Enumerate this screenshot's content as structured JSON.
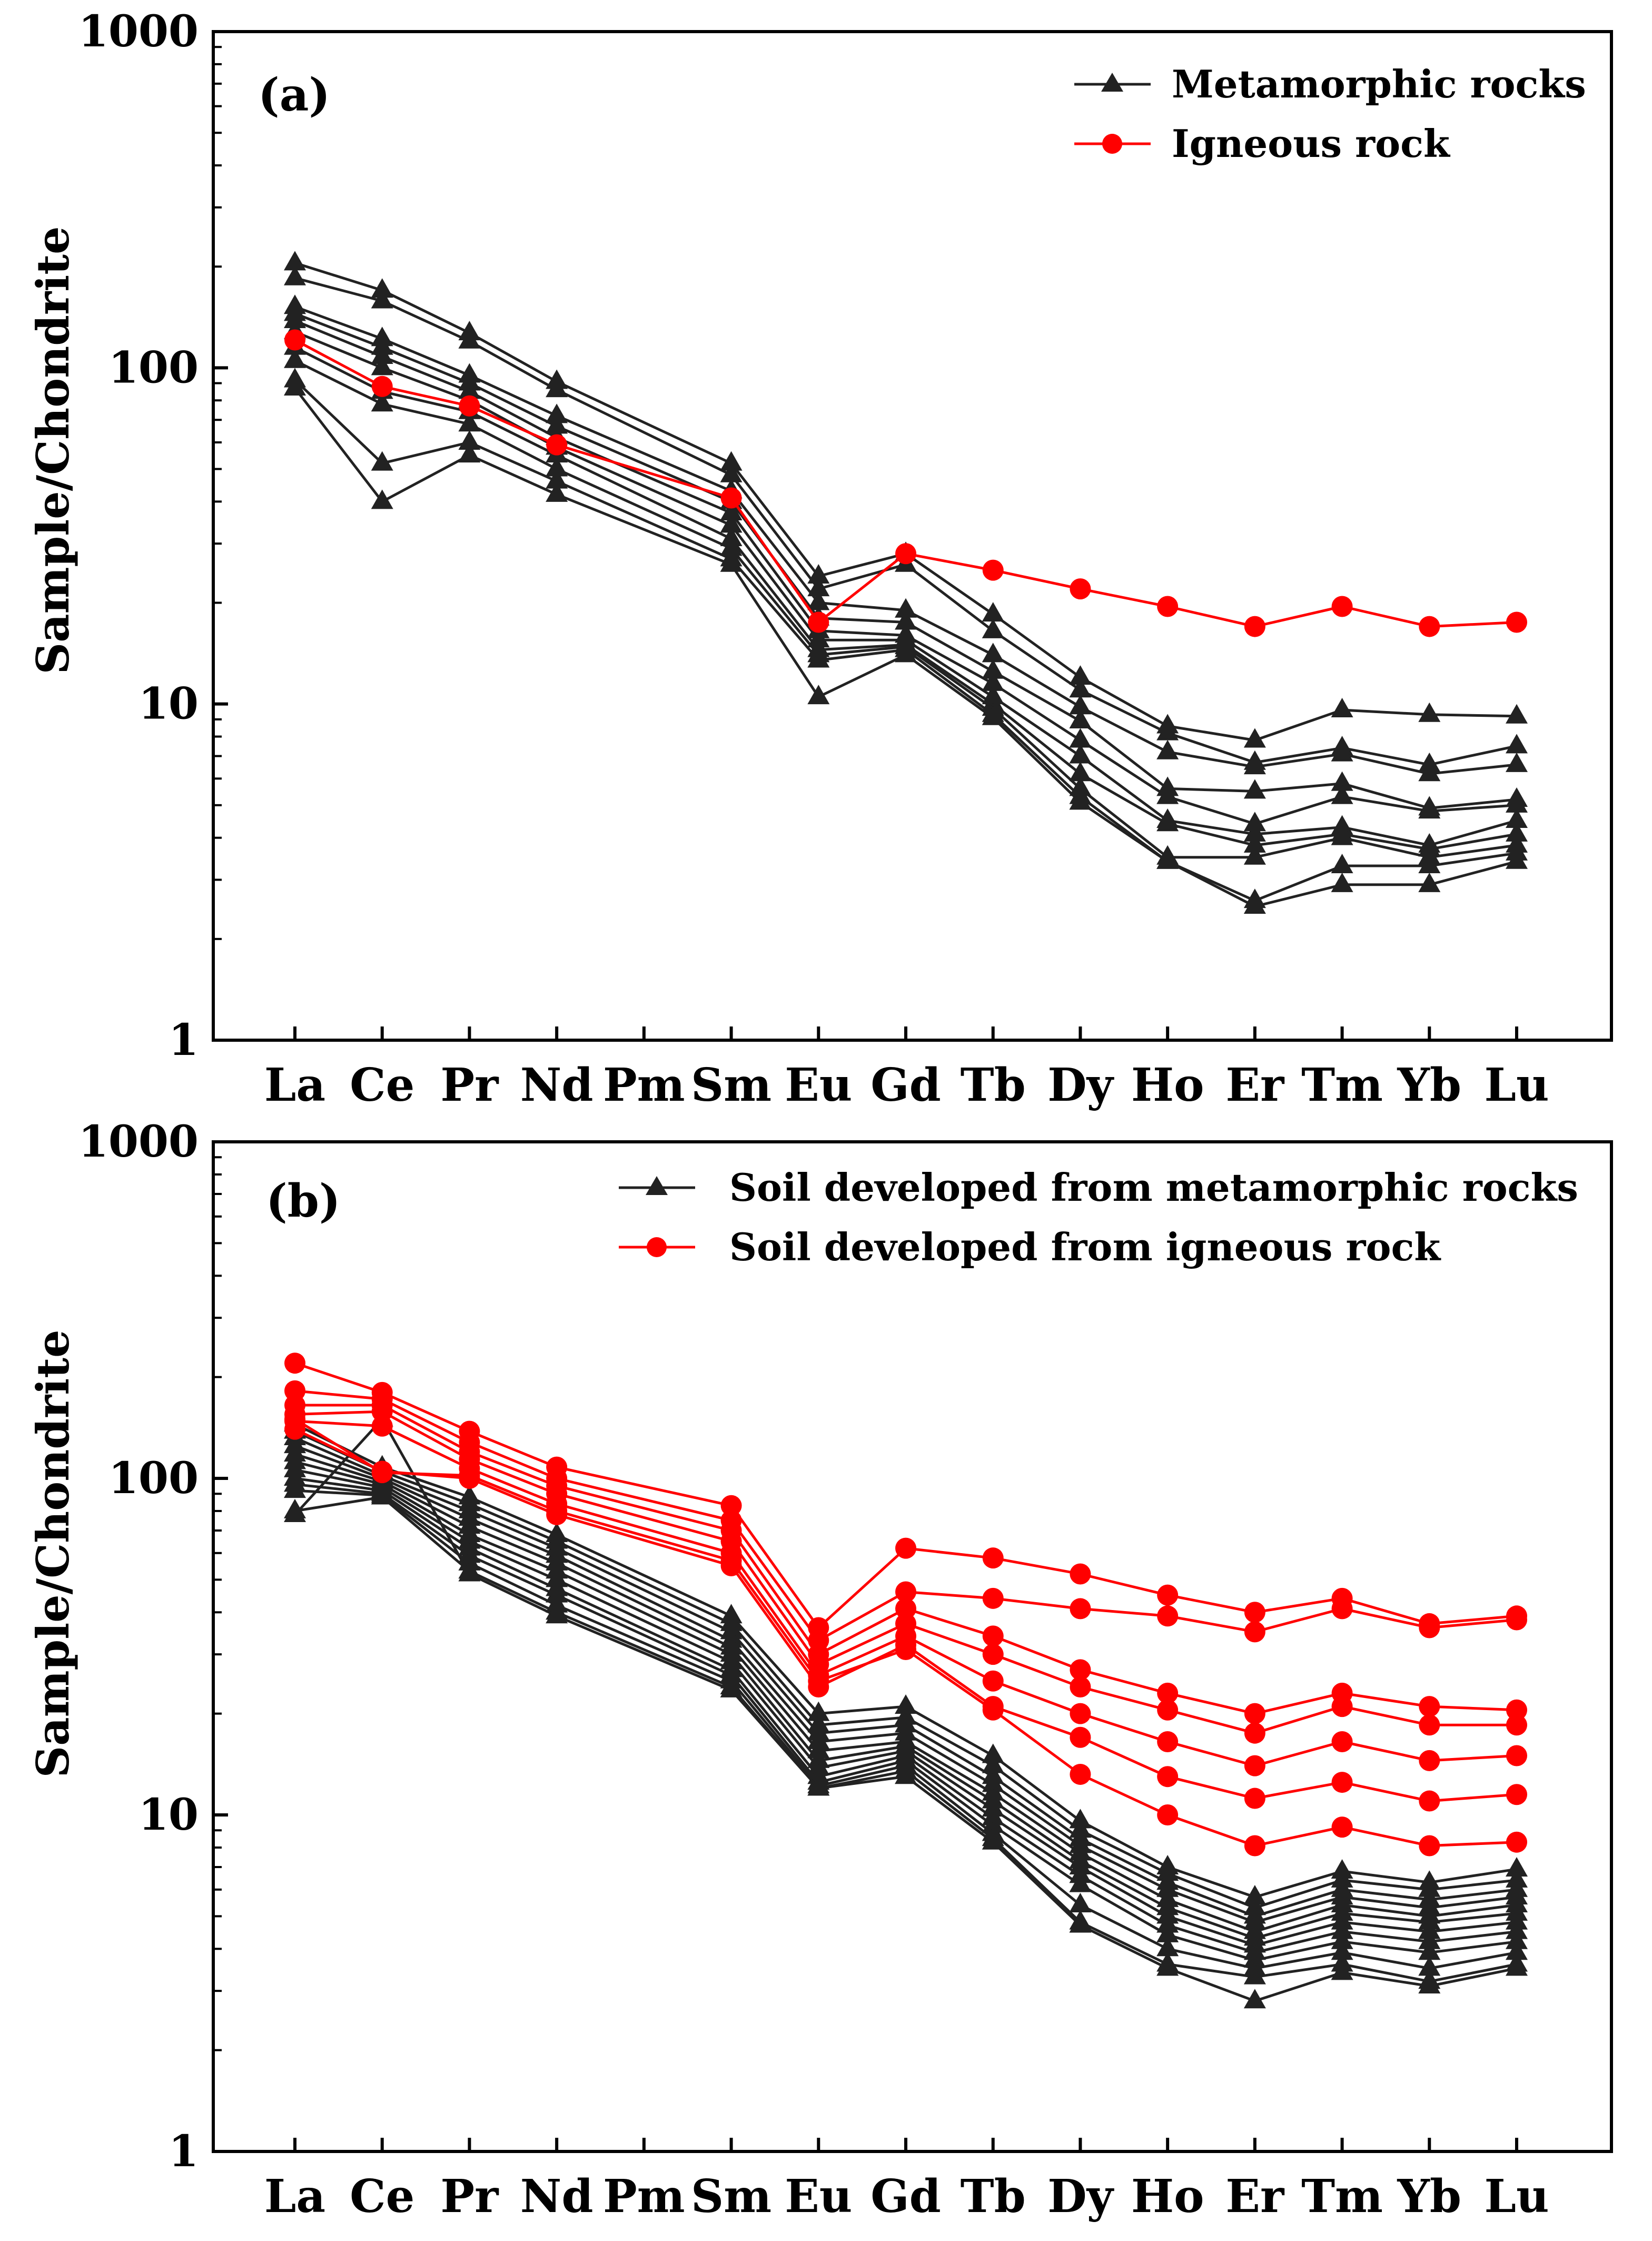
{
  "colors": {
    "metamorphic": "#222222",
    "igneous": "#ff0000",
    "axis": "#000000"
  },
  "chart_data": [
    {
      "type": "line",
      "panel_label": "(a)",
      "ylabel": "Sample/Chondrite",
      "yscale": "log",
      "ylim": [
        1,
        1000
      ],
      "ytick_labels": [
        "1",
        "10",
        "100",
        "1000"
      ],
      "categories": [
        "La",
        "Ce",
        "Pr",
        "Nd",
        "Pm",
        "Sm",
        "Eu",
        "Gd",
        "Tb",
        "Dy",
        "Ho",
        "Er",
        "Tm",
        "Yb",
        "Lu"
      ],
      "legend": [
        {
          "label": "Metamorphic rocks",
          "color": "#222222",
          "marker": "triangle"
        },
        {
          "label": "Igneous rock",
          "color": "#ff0000",
          "marker": "circle"
        }
      ],
      "series": [
        {
          "name": "Metamorphic rocks",
          "group": "metamorphic",
          "values": [
            205,
            170,
            127,
            91,
            null,
            52,
            24,
            28,
            18.5,
            12,
            8.6,
            7.8,
            9.6,
            9.3,
            9.2
          ]
        },
        {
          "name": "Metamorphic rocks",
          "group": "metamorphic",
          "values": [
            185,
            158,
            120,
            86,
            null,
            48,
            22,
            26,
            16.5,
            11,
            8.2,
            6.7,
            7.4,
            6.6,
            7.5
          ]
        },
        {
          "name": "Metamorphic rocks",
          "group": "metamorphic",
          "values": [
            152,
            122,
            95,
            72,
            null,
            43,
            20,
            19,
            14,
            9.8,
            7.2,
            6.5,
            7.1,
            6.2,
            6.6
          ]
        },
        {
          "name": "Metamorphic rocks",
          "group": "metamorphic",
          "values": [
            145,
            115,
            90,
            67,
            null,
            40,
            18,
            17.5,
            12.5,
            8.9,
            5.6,
            5.5,
            5.8,
            4.9,
            5.2
          ]
        },
        {
          "name": "Metamorphic rocks",
          "group": "metamorphic",
          "values": [
            138,
            108,
            85,
            62,
            null,
            37,
            16.5,
            16,
            11.5,
            7.8,
            5.3,
            4.4,
            5.3,
            4.8,
            5.0
          ]
        },
        {
          "name": "Metamorphic rocks",
          "group": "metamorphic",
          "values": [
            128,
            100,
            80,
            58,
            null,
            34,
            15.5,
            15.5,
            10.5,
            7.0,
            4.5,
            4.1,
            4.3,
            3.8,
            4.5
          ]
        },
        {
          "name": "Metamorphic rocks",
          "group": "metamorphic",
          "values": [
            115,
            85,
            74,
            55,
            null,
            31,
            14.5,
            15,
            10,
            6.2,
            4.4,
            3.8,
            4.1,
            3.7,
            4.1
          ]
        },
        {
          "name": "Metamorphic rocks",
          "group": "metamorphic",
          "values": [
            105,
            78,
            68,
            50,
            null,
            29,
            14,
            14.8,
            9.7,
            5.6,
            3.5,
            3.5,
            4.0,
            3.5,
            3.8
          ]
        },
        {
          "name": "Metamorphic rocks",
          "group": "metamorphic",
          "values": [
            92,
            52,
            60,
            46,
            null,
            27,
            13.5,
            14.5,
            9.3,
            5.3,
            3.4,
            2.6,
            3.3,
            3.3,
            3.6
          ]
        },
        {
          "name": "Metamorphic rocks",
          "group": "metamorphic",
          "values": [
            87,
            40,
            55,
            42,
            null,
            26,
            10.5,
            14,
            9.1,
            5.1,
            3.4,
            2.5,
            2.9,
            2.9,
            3.4
          ]
        },
        {
          "name": "Igneous rock",
          "group": "igneous",
          "values": [
            121,
            88,
            77,
            59,
            null,
            41,
            17.5,
            28,
            25,
            22,
            19.5,
            17,
            19.5,
            17,
            17.5
          ]
        }
      ]
    },
    {
      "type": "line",
      "panel_label": "(b)",
      "ylabel": "Sample/Chondrite",
      "yscale": "log",
      "ylim": [
        1,
        1000
      ],
      "ytick_labels": [
        "1",
        "10",
        "100",
        "1000"
      ],
      "categories": [
        "La",
        "Ce",
        "Pr",
        "Nd",
        "Pm",
        "Sm",
        "Eu",
        "Gd",
        "Tb",
        "Dy",
        "Ho",
        "Er",
        "Tm",
        "Yb",
        "Lu"
      ],
      "legend": [
        {
          "label": "Soil developed from metamorphic rocks",
          "color": "#222222",
          "marker": "triangle"
        },
        {
          "label": "Soil developed from igneous rock",
          "color": "#ff0000",
          "marker": "circle"
        }
      ],
      "series": [
        {
          "name": "Soil developed from metamorphic rocks",
          "group": "metamorphic",
          "values": [
            145,
            108,
            88,
            68,
            null,
            39,
            20,
            21,
            15,
            9.6,
            7.0,
            5.7,
            6.8,
            6.3,
            6.9
          ]
        },
        {
          "name": "Soil developed from metamorphic rocks",
          "group": "metamorphic",
          "values": [
            138,
            105,
            84,
            65,
            null,
            37,
            18.5,
            19.5,
            14,
            9.0,
            6.7,
            5.3,
            6.4,
            6.0,
            6.4
          ]
        },
        {
          "name": "Soil developed from metamorphic rocks",
          "group": "metamorphic",
          "values": [
            132,
            102,
            80,
            62,
            null,
            35,
            17.5,
            18.5,
            13,
            8.5,
            6.3,
            5.0,
            6.0,
            5.6,
            6.0
          ]
        },
        {
          "name": "Soil developed from metamorphic rocks",
          "group": "metamorphic",
          "values": [
            125,
            100,
            76,
            59,
            null,
            33,
            16.5,
            17.5,
            12.3,
            8.1,
            6.0,
            4.8,
            5.7,
            5.3,
            5.7
          ]
        },
        {
          "name": "Soil developed from metamorphic rocks",
          "group": "metamorphic",
          "values": [
            118,
            98,
            72,
            56,
            null,
            31.5,
            15.5,
            16.5,
            11.6,
            7.7,
            5.6,
            4.5,
            5.4,
            5.0,
            5.4
          ]
        },
        {
          "name": "Soil developed from metamorphic rocks",
          "group": "metamorphic",
          "values": [
            112,
            96,
            68,
            53,
            null,
            30,
            14.5,
            16,
            11,
            7.3,
            5.3,
            4.3,
            5.1,
            4.8,
            5.1
          ]
        },
        {
          "name": "Soil developed from metamorphic rocks",
          "group": "metamorphic",
          "values": [
            106,
            94,
            65,
            50,
            null,
            28.5,
            13.8,
            15.5,
            10.4,
            7.0,
            5.0,
            4.1,
            4.8,
            4.5,
            4.8
          ]
        },
        {
          "name": "Soil developed from metamorphic rocks",
          "group": "metamorphic",
          "values": [
            100,
            92,
            62,
            47,
            null,
            27,
            13,
            15,
            9.8,
            6.6,
            4.7,
            3.9,
            4.5,
            4.2,
            4.5
          ]
        },
        {
          "name": "Soil developed from metamorphic rocks",
          "group": "metamorphic",
          "values": [
            96,
            90,
            59,
            45,
            null,
            26,
            12.5,
            14.5,
            9.3,
            6.2,
            4.4,
            3.7,
            4.2,
            3.9,
            4.2
          ]
        },
        {
          "name": "Soil developed from metamorphic rocks",
          "group": "metamorphic",
          "values": [
            92,
            89,
            56,
            42,
            null,
            25,
            12.2,
            14,
            8.8,
            5.4,
            4.0,
            3.5,
            3.9,
            3.5,
            3.9
          ]
        },
        {
          "name": "Soil developed from metamorphic rocks",
          "group": "metamorphic",
          "values": [
            80,
            88,
            53,
            40,
            null,
            24,
            12,
            13.5,
            8.5,
            4.8,
            3.6,
            3.3,
            3.6,
            3.2,
            3.6
          ]
        },
        {
          "name": "Soil developed from metamorphic rocks",
          "group": "metamorphic",
          "values": [
            78,
            150,
            52,
            39,
            null,
            23.5,
            12,
            13,
            8.3,
            4.7,
            3.5,
            2.8,
            3.4,
            3.1,
            3.5
          ]
        },
        {
          "name": "Soil developed from igneous rock",
          "group": "igneous",
          "values": [
            220,
            180,
            138,
            108,
            null,
            83,
            36,
            62,
            58,
            52,
            45,
            40,
            44,
            37,
            39
          ]
        },
        {
          "name": "Soil developed from igneous rock",
          "group": "igneous",
          "values": [
            182,
            172,
            128,
            100,
            null,
            75,
            33,
            46,
            44,
            41,
            39,
            35,
            41,
            36,
            38
          ]
        },
        {
          "name": "Soil developed from igneous rock",
          "group": "igneous",
          "values": [
            165,
            165,
            120,
            95,
            null,
            70,
            30,
            41,
            34,
            27,
            23,
            20,
            23,
            21,
            20.5
          ]
        },
        {
          "name": "Soil developed from igneous rock",
          "group": "igneous",
          "values": [
            155,
            158,
            114,
            90,
            null,
            65,
            28,
            37,
            30,
            24,
            20.5,
            17.5,
            21,
            18.5,
            18.5
          ]
        },
        {
          "name": "Soil developed from igneous rock",
          "group": "igneous",
          "values": [
            148,
            143,
            107,
            84,
            null,
            60,
            26,
            34,
            25,
            20,
            16.5,
            14,
            16.5,
            14.5,
            15
          ]
        },
        {
          "name": "Soil developed from igneous rock",
          "group": "igneous",
          "values": [
            140,
            105,
            100,
            78,
            null,
            55,
            24,
            32,
            21,
            17,
            13,
            11.2,
            12.5,
            11,
            11.5
          ]
        },
        {
          "name": "Soil developed from igneous rock",
          "group": "igneous",
          "values": [
            150,
            104,
            102,
            80,
            null,
            57,
            25,
            31,
            20.5,
            13.2,
            10,
            8.1,
            9.2,
            8.1,
            8.3
          ]
        }
      ]
    }
  ]
}
